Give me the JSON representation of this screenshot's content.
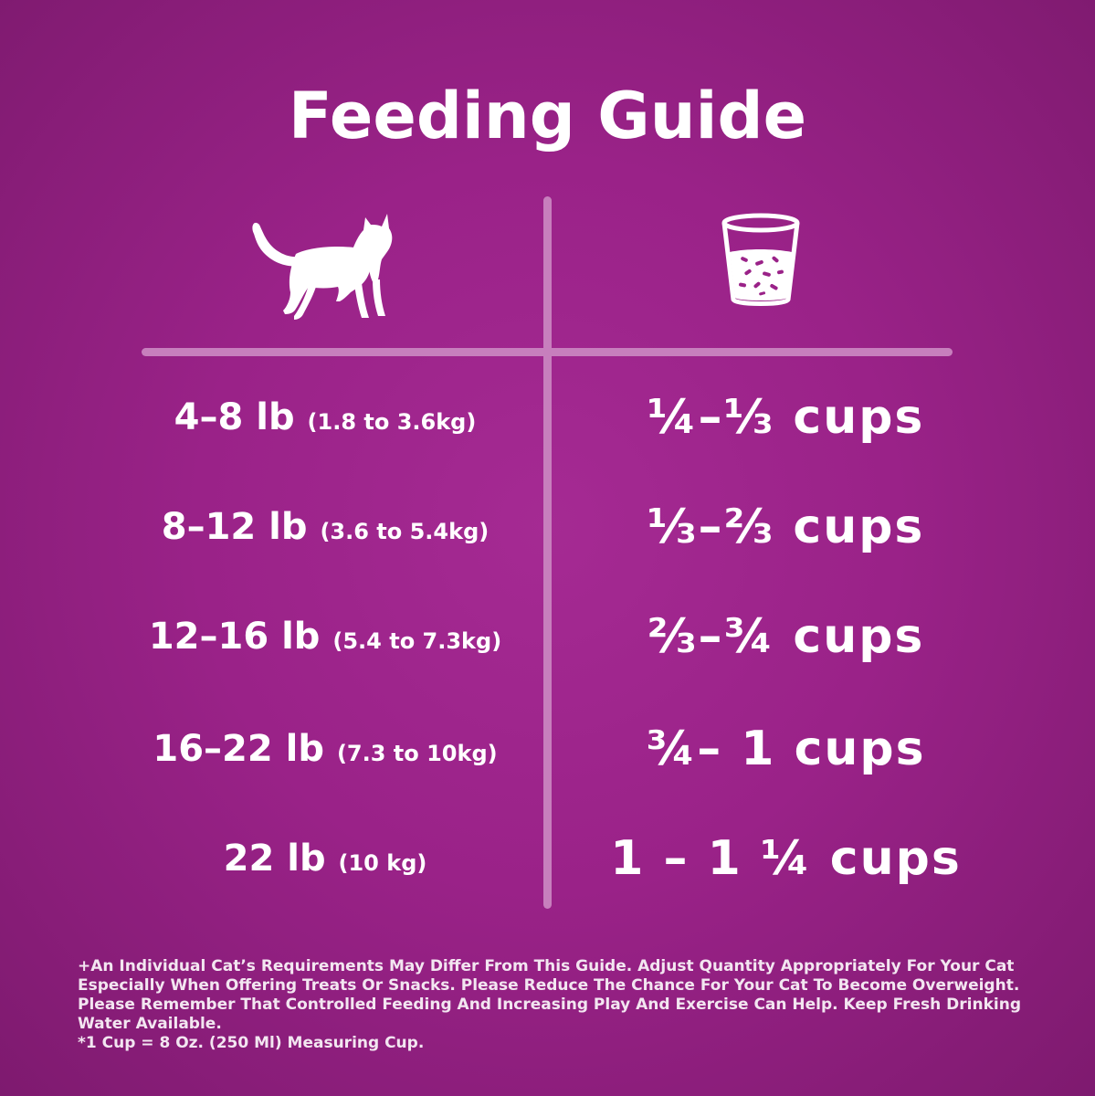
{
  "title": "Feeding Guide",
  "header_icons": {
    "left": "cat-icon",
    "right": "measuring-cup-icon"
  },
  "colors": {
    "background": "#9a2288",
    "divider": "#c77fbd",
    "text": "#ffffff"
  },
  "rows": [
    {
      "weight": "4–8 lb",
      "metric": "(1.8 to 3.6kg)",
      "amount": "¼–⅓ cups"
    },
    {
      "weight": "8–12 lb",
      "metric": "(3.6 to 5.4kg)",
      "amount": "⅓–⅔ cups"
    },
    {
      "weight": "12–16 lb",
      "metric": "(5.4 to 7.3kg)",
      "amount": "⅔–¾ cups"
    },
    {
      "weight": "16–22 lb",
      "metric": "(7.3 to 10kg)",
      "amount": "¾– 1 cups"
    },
    {
      "weight": "22 lb",
      "metric": "(10 kg)",
      "amount": "1 – 1 ¼ cups"
    }
  ],
  "footnote": {
    "line1": "+An Individual Cat’s Requirements May Differ From This Guide.  Adjust Quantity Appropriately For Your Cat Especially When Offering Treats Or Snacks.  Please Reduce The Chance For Your Cat To Become Overweight.  Please Remember That Controlled Feeding And Increasing Play And Exercise Can Help.  Keep Fresh Drinking Water Available.",
    "line2": "*1 Cup = 8 Oz. (250 Ml) Measuring Cup."
  }
}
